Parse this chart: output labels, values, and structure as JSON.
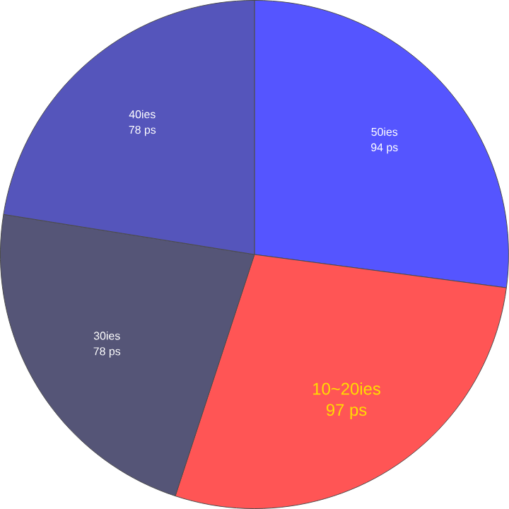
{
  "chart_data": {
    "type": "pie",
    "categories": [
      "50ies",
      "10~20ies",
      "30ies",
      "40ies"
    ],
    "values": [
      94,
      97,
      78,
      78
    ],
    "value_labels": [
      "94 ps",
      "97 ps",
      "78 ps",
      "78 ps"
    ],
    "colors": [
      "#5555ff",
      "#ff5555",
      "#555577",
      "#5555bb"
    ]
  }
}
